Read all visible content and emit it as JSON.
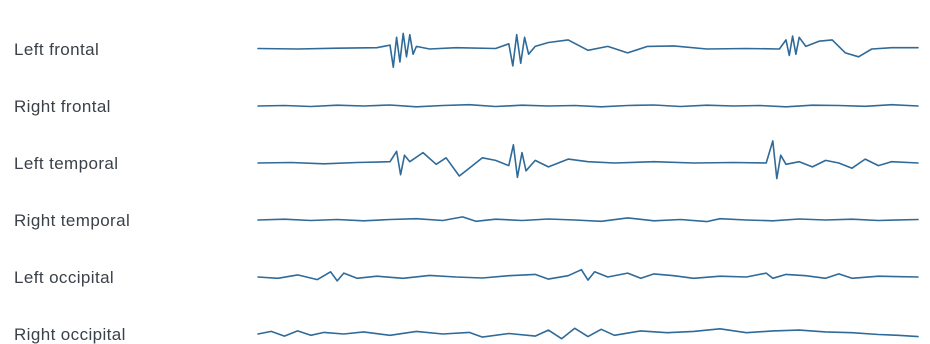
{
  "chart_data": {
    "type": "line",
    "title": "",
    "xlabel": "",
    "ylabel": "",
    "grid": false,
    "legend": "none",
    "colors": {
      "trace": "#2f6a98",
      "label": "#3b4148"
    },
    "x_range": [
      0,
      100
    ],
    "y_range": [
      -1,
      1
    ],
    "series": [
      {
        "name": "Left frontal",
        "rows": [
          [
            0,
            0.02
          ],
          [
            6,
            0
          ],
          [
            12,
            0.03
          ],
          [
            18,
            0.05
          ],
          [
            20,
            0.15
          ],
          [
            20.5,
            -0.7
          ],
          [
            21,
            0.45
          ],
          [
            21.5,
            -0.5
          ],
          [
            22,
            0.6
          ],
          [
            22.5,
            -0.3
          ],
          [
            23,
            0.55
          ],
          [
            23.5,
            -0.2
          ],
          [
            24,
            0.1
          ],
          [
            26,
            0
          ],
          [
            30,
            0.05
          ],
          [
            36,
            0.02
          ],
          [
            38,
            0.2
          ],
          [
            38.6,
            -0.65
          ],
          [
            39.2,
            0.55
          ],
          [
            39.8,
            -0.55
          ],
          [
            40.4,
            0.45
          ],
          [
            41,
            -0.2
          ],
          [
            42,
            0.1
          ],
          [
            44,
            0.25
          ],
          [
            47,
            0.35
          ],
          [
            50,
            -0.05
          ],
          [
            53,
            0.1
          ],
          [
            56,
            -0.15
          ],
          [
            59,
            0.1
          ],
          [
            63,
            0.12
          ],
          [
            68,
            0.0
          ],
          [
            74,
            0.02
          ],
          [
            79,
            0.0
          ],
          [
            80,
            0.35
          ],
          [
            80.5,
            -0.25
          ],
          [
            81,
            0.5
          ],
          [
            81.5,
            -0.2
          ],
          [
            82,
            0.45
          ],
          [
            83,
            0.1
          ],
          [
            85,
            0.3
          ],
          [
            87,
            0.35
          ],
          [
            89,
            -0.15
          ],
          [
            91,
            -0.3
          ],
          [
            93,
            0.0
          ],
          [
            96,
            0.05
          ],
          [
            100,
            0.05
          ]
        ]
      },
      {
        "name": "Right frontal",
        "rows": [
          [
            0,
            0
          ],
          [
            4,
            0.02
          ],
          [
            8,
            -0.02
          ],
          [
            12,
            0.03
          ],
          [
            16,
            0
          ],
          [
            20,
            0.04
          ],
          [
            24,
            -0.03
          ],
          [
            28,
            0.02
          ],
          [
            32,
            0.05
          ],
          [
            36,
            -0.02
          ],
          [
            40,
            0.03
          ],
          [
            44,
            0
          ],
          [
            48,
            0.02
          ],
          [
            52,
            -0.03
          ],
          [
            56,
            0.02
          ],
          [
            60,
            0.04
          ],
          [
            64,
            -0.02
          ],
          [
            68,
            0.03
          ],
          [
            72,
            0
          ],
          [
            76,
            0.02
          ],
          [
            80,
            -0.03
          ],
          [
            84,
            0.03
          ],
          [
            88,
            0.02
          ],
          [
            92,
            -0.01
          ],
          [
            96,
            0.05
          ],
          [
            100,
            0.0
          ]
        ]
      },
      {
        "name": "Left temporal",
        "rows": [
          [
            0,
            0
          ],
          [
            5,
            0.02
          ],
          [
            10,
            -0.03
          ],
          [
            15,
            0.02
          ],
          [
            20,
            0.05
          ],
          [
            21,
            0.45
          ],
          [
            21.6,
            -0.45
          ],
          [
            22.2,
            0.3
          ],
          [
            23,
            0.05
          ],
          [
            25,
            0.4
          ],
          [
            27,
            -0.05
          ],
          [
            28.5,
            0.2
          ],
          [
            30.5,
            -0.5
          ],
          [
            32,
            -0.2
          ],
          [
            34,
            0.2
          ],
          [
            36,
            0.1
          ],
          [
            38,
            -0.1
          ],
          [
            38.7,
            0.7
          ],
          [
            39.3,
            -0.55
          ],
          [
            40,
            0.4
          ],
          [
            40.6,
            -0.3
          ],
          [
            42,
            0.1
          ],
          [
            44,
            -0.15
          ],
          [
            47,
            0.15
          ],
          [
            50,
            0.05
          ],
          [
            54,
            0.0
          ],
          [
            60,
            0.05
          ],
          [
            66,
            0.0
          ],
          [
            72,
            0.02
          ],
          [
            77,
            0.0
          ],
          [
            78,
            0.85
          ],
          [
            78.6,
            -0.6
          ],
          [
            79.2,
            0.3
          ],
          [
            80,
            -0.05
          ],
          [
            82,
            0.05
          ],
          [
            84,
            -0.15
          ],
          [
            86,
            0.1
          ],
          [
            88,
            0.0
          ],
          [
            90,
            -0.2
          ],
          [
            92,
            0.15
          ],
          [
            94,
            -0.1
          ],
          [
            96,
            0.05
          ],
          [
            100,
            0.0
          ]
        ]
      },
      {
        "name": "Right temporal",
        "rows": [
          [
            0,
            0
          ],
          [
            4,
            0.03
          ],
          [
            8,
            -0.02
          ],
          [
            12,
            0.02
          ],
          [
            16,
            -0.03
          ],
          [
            20,
            0.02
          ],
          [
            24,
            0.05
          ],
          [
            28,
            -0.02
          ],
          [
            31,
            0.12
          ],
          [
            33,
            -0.05
          ],
          [
            36,
            0.03
          ],
          [
            40,
            -0.02
          ],
          [
            44,
            0.04
          ],
          [
            48,
            0
          ],
          [
            52,
            -0.05
          ],
          [
            56,
            0.08
          ],
          [
            60,
            -0.03
          ],
          [
            64,
            0.02
          ],
          [
            68,
            -0.06
          ],
          [
            70,
            0.05
          ],
          [
            74,
            0.0
          ],
          [
            78,
            -0.03
          ],
          [
            82,
            0.04
          ],
          [
            86,
            0.0
          ],
          [
            90,
            0.03
          ],
          [
            94,
            -0.02
          ],
          [
            100,
            0.02
          ]
        ]
      },
      {
        "name": "Left occipital",
        "rows": [
          [
            0,
            0
          ],
          [
            3,
            -0.05
          ],
          [
            6,
            0.08
          ],
          [
            9,
            -0.1
          ],
          [
            11,
            0.2
          ],
          [
            12,
            -0.15
          ],
          [
            13,
            0.15
          ],
          [
            15,
            -0.05
          ],
          [
            18,
            0.03
          ],
          [
            22,
            -0.05
          ],
          [
            26,
            0.06
          ],
          [
            30,
            0
          ],
          [
            34,
            -0.04
          ],
          [
            38,
            0.05
          ],
          [
            42,
            0.1
          ],
          [
            44,
            -0.08
          ],
          [
            47,
            0.05
          ],
          [
            49,
            0.28
          ],
          [
            50,
            -0.12
          ],
          [
            51,
            0.2
          ],
          [
            53,
            0.0
          ],
          [
            56,
            0.15
          ],
          [
            58,
            -0.05
          ],
          [
            60,
            0.12
          ],
          [
            63,
            0.05
          ],
          [
            66,
            -0.05
          ],
          [
            70,
            0.03
          ],
          [
            74,
            0.0
          ],
          [
            77,
            0.15
          ],
          [
            78,
            -0.05
          ],
          [
            80,
            0.1
          ],
          [
            83,
            0.05
          ],
          [
            86,
            -0.05
          ],
          [
            88,
            0.12
          ],
          [
            90,
            -0.05
          ],
          [
            94,
            0.03
          ],
          [
            100,
            0.0
          ]
        ]
      },
      {
        "name": "Right occipital",
        "rows": [
          [
            0,
            0
          ],
          [
            2,
            0.1
          ],
          [
            4,
            -0.08
          ],
          [
            6,
            0.12
          ],
          [
            8,
            -0.05
          ],
          [
            10,
            0.06
          ],
          [
            13,
            0.0
          ],
          [
            16,
            0.08
          ],
          [
            20,
            -0.05
          ],
          [
            24,
            0.1
          ],
          [
            28,
            0.0
          ],
          [
            32,
            0.06
          ],
          [
            34,
            -0.12
          ],
          [
            38,
            0.02
          ],
          [
            42,
            -0.08
          ],
          [
            44,
            0.15
          ],
          [
            46,
            -0.18
          ],
          [
            48,
            0.22
          ],
          [
            50,
            -0.1
          ],
          [
            52,
            0.18
          ],
          [
            54,
            -0.05
          ],
          [
            58,
            0.12
          ],
          [
            62,
            0.05
          ],
          [
            66,
            0.1
          ],
          [
            70,
            0.2
          ],
          [
            74,
            0.05
          ],
          [
            78,
            0.12
          ],
          [
            82,
            0.15
          ],
          [
            86,
            0.08
          ],
          [
            90,
            0.05
          ],
          [
            94,
            -0.02
          ],
          [
            97,
            -0.05
          ],
          [
            100,
            -0.1
          ]
        ]
      }
    ]
  }
}
